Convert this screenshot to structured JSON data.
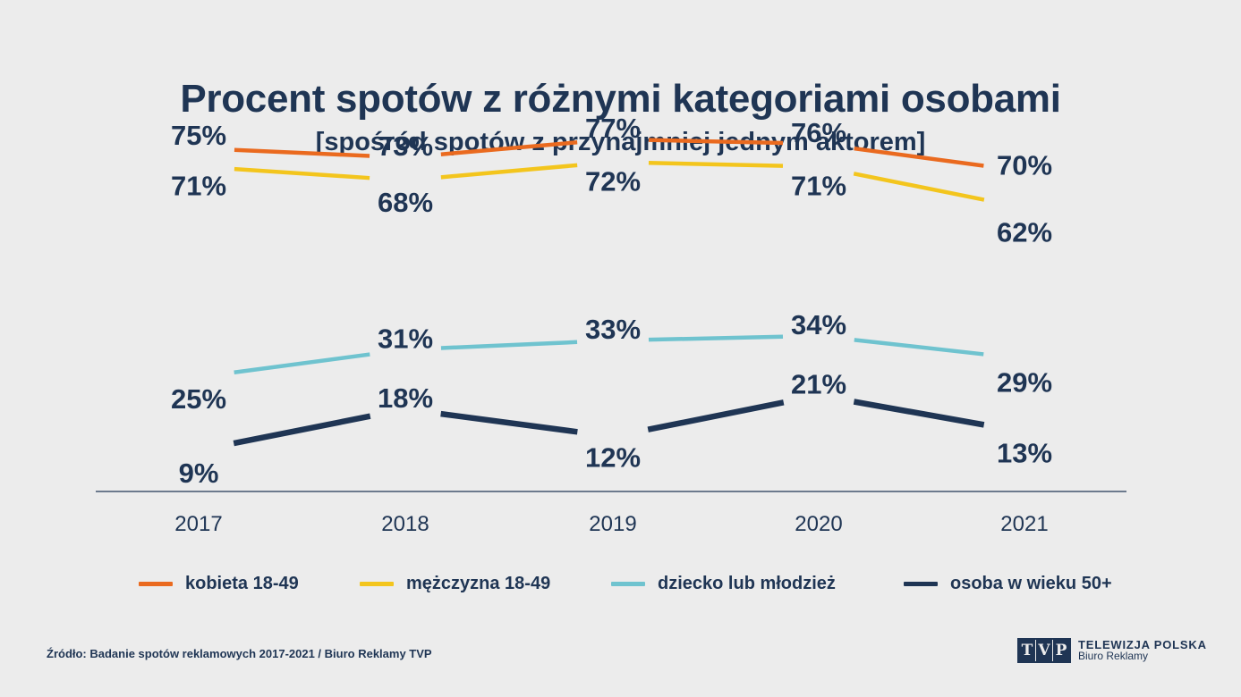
{
  "chart_data": {
    "type": "line",
    "title": "Procent spotów z różnymi kategoriami osobami",
    "subtitle": "[spośród spotów z przynajmniej jednym aktorem]",
    "categories": [
      "2017",
      "2018",
      "2019",
      "2020",
      "2021"
    ],
    "ylim": [
      0,
      100
    ],
    "grid": false,
    "legend_position": "bottom",
    "series": [
      {
        "name": "kobieta 18-49",
        "color": "#ea6a1f",
        "values": [
          75,
          73,
          77,
          76,
          70
        ],
        "labels": [
          "75%",
          "73%",
          "77%",
          "76%",
          "70%"
        ]
      },
      {
        "name": "mężczyzna 18-49",
        "color": "#f3c51d",
        "values": [
          71,
          68,
          72,
          71,
          62
        ],
        "labels": [
          "71%",
          "68%",
          "72%",
          "71%",
          "62%"
        ]
      },
      {
        "name": "dziecko lub młodzież",
        "color": "#6fc3cf",
        "values": [
          25,
          31,
          33,
          34,
          29
        ],
        "labels": [
          "25%",
          "31%",
          "33%",
          "34%",
          "29%"
        ]
      },
      {
        "name": "osoba w wieku 50+",
        "color": "#1f3554",
        "values": [
          9,
          18,
          12,
          21,
          13
        ],
        "labels": [
          "9%",
          "18%",
          "12%",
          "21%",
          "13%"
        ]
      }
    ]
  },
  "source": "Źródło: Badanie spotów reklamowych 2017-2021 / Biuro Reklamy TVP",
  "logo": {
    "letters": [
      "T",
      "V",
      "P"
    ],
    "brand": "TELEWIZJA POLSKA",
    "sub": "Biuro Reklamy"
  }
}
